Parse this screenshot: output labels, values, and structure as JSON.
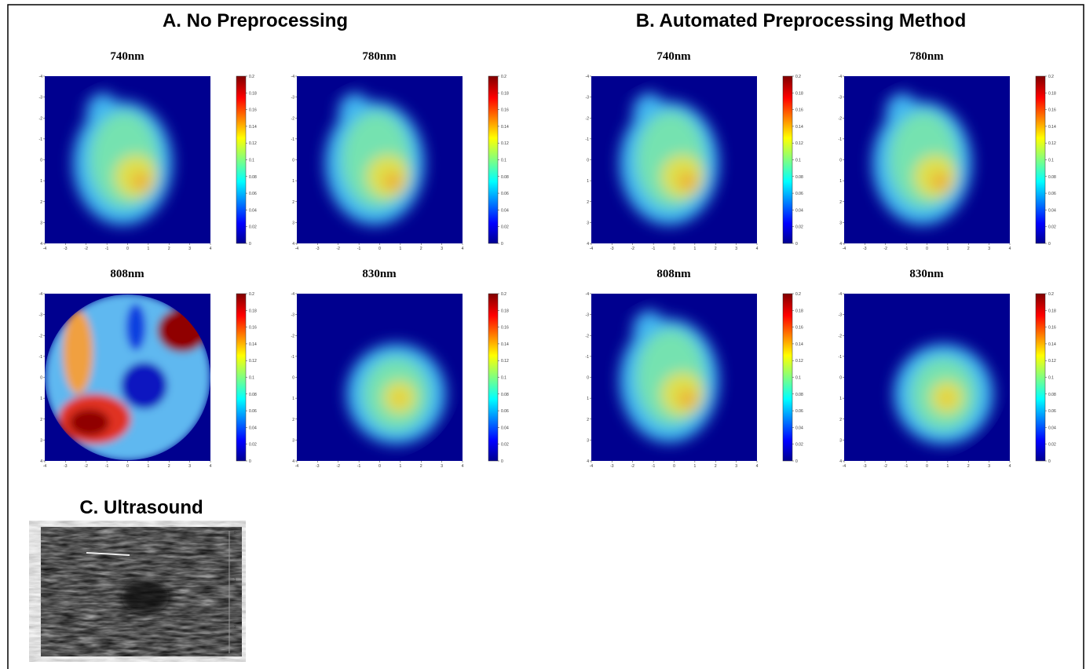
{
  "sections": [
    {
      "title": "A. No Preprocessing",
      "panels": [
        {
          "label": "740nm"
        },
        {
          "label": "780nm"
        },
        {
          "label": "808nm"
        },
        {
          "label": "830nm"
        }
      ]
    },
    {
      "title": "B. Automated Preprocessing Method",
      "panels": [
        {
          "label": "740nm"
        },
        {
          "label": "780nm"
        },
        {
          "label": "808nm"
        },
        {
          "label": "830nm"
        }
      ]
    }
  ],
  "axis_ticks": [
    -4,
    -3,
    -2,
    -1,
    0,
    1,
    2,
    3,
    4
  ],
  "colorbar_ticks": [
    0,
    0.02,
    0.04,
    0.06,
    0.08,
    0.1,
    0.12,
    0.14,
    0.16,
    0.18,
    0.2
  ],
  "ultrasound": {
    "title": "C. Ultrasound",
    "scale_labels": [
      "0",
      "1",
      "2"
    ]
  }
}
